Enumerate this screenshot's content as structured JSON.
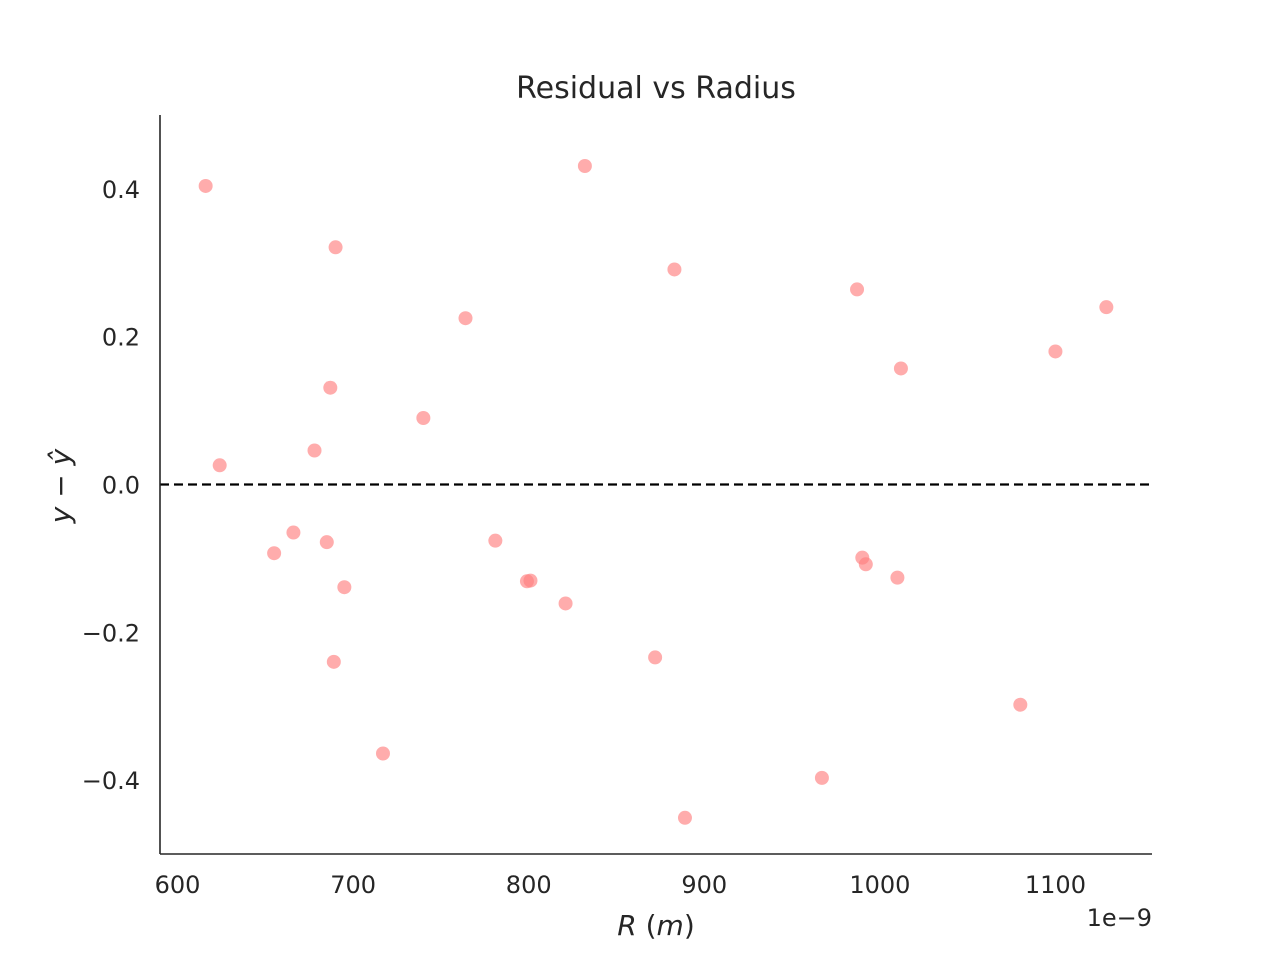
{
  "chart_data": {
    "type": "scatter",
    "title": "Residual vs Radius",
    "xlabel": "R (m)",
    "xlabel_parts": {
      "var": "R",
      "open": " (",
      "unit": "m",
      "close": ")"
    },
    "ylabel": "y − ŷ",
    "x_offset_label": "1e−9",
    "xlim": [
      590,
      1155
    ],
    "ylim": [
      -0.5,
      0.5
    ],
    "x_ticks": [
      600,
      700,
      800,
      900,
      1000,
      1100
    ],
    "x_tick_labels": [
      "600",
      "700",
      "800",
      "900",
      "1000",
      "1100"
    ],
    "y_ticks": [
      -0.4,
      -0.2,
      0.0,
      0.2,
      0.4
    ],
    "y_tick_labels": [
      "−0.4",
      "−0.2",
      "0.0",
      "0.2",
      "0.4"
    ],
    "reference_line": {
      "y": 0.0,
      "style": "dashed",
      "color": "#000000"
    },
    "grid": false,
    "point_color": "#ff8080",
    "series": [
      {
        "points": [
          [
            616,
            0.404
          ],
          [
            624,
            0.026
          ],
          [
            655,
            -0.093
          ],
          [
            666,
            -0.065
          ],
          [
            678,
            0.046
          ],
          [
            685,
            -0.078
          ],
          [
            687,
            0.131
          ],
          [
            689,
            -0.24
          ],
          [
            690,
            0.321
          ],
          [
            695,
            -0.139
          ],
          [
            717,
            -0.364
          ],
          [
            740,
            0.09
          ],
          [
            764,
            0.225
          ],
          [
            781,
            -0.076
          ],
          [
            799,
            -0.131
          ],
          [
            801,
            -0.13
          ],
          [
            821,
            -0.161
          ],
          [
            832,
            0.431
          ],
          [
            872,
            -0.234
          ],
          [
            883,
            0.291
          ],
          [
            889,
            -0.451
          ],
          [
            967,
            -0.397
          ],
          [
            987,
            0.264
          ],
          [
            990,
            -0.099
          ],
          [
            992,
            -0.108
          ],
          [
            1010,
            -0.126
          ],
          [
            1012,
            0.157
          ],
          [
            1080,
            -0.298
          ],
          [
            1100,
            0.18
          ],
          [
            1129,
            0.24
          ]
        ]
      }
    ]
  }
}
